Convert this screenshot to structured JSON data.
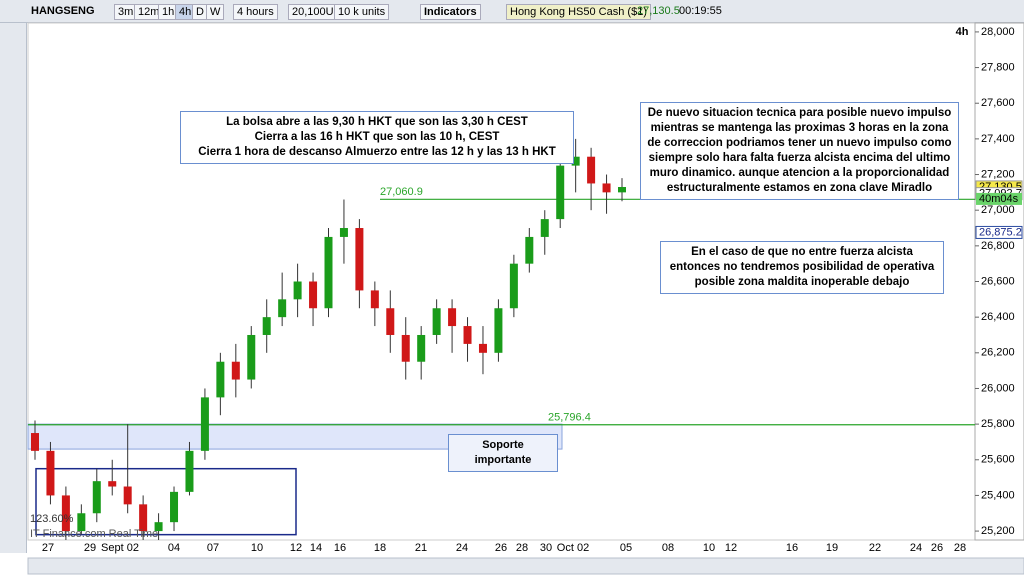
{
  "toolbar": {
    "symbol": "HANGSENG",
    "buttons": [
      "3m",
      "12m",
      "1h",
      "4h",
      "D",
      "W"
    ],
    "period": "4 hours",
    "size": "20,100U",
    "units": "10 k units",
    "indicators": "Indicators",
    "instrument": "Hong Kong HS50 Cash ($1)",
    "price": "27,130.5",
    "time": "00:19:55"
  },
  "chart_data": {
    "type": "candlestick",
    "timeframe": "4h",
    "open": [
      25750,
      25650,
      25400,
      25200,
      25300,
      25480,
      25450,
      25350,
      25200,
      25250,
      25420,
      25650,
      25950,
      26150,
      26050,
      26300,
      26400,
      26500,
      26600,
      26450,
      26850,
      26900,
      26550,
      26450,
      26300,
      26150,
      26300,
      26450,
      26350,
      26250,
      26200,
      26450,
      26700,
      26850,
      26950,
      27250,
      27300,
      27150,
      27100
    ],
    "high": [
      25820,
      25700,
      25450,
      25350,
      25550,
      25600,
      25800,
      25400,
      25300,
      25450,
      25700,
      26000,
      26200,
      26250,
      26350,
      26500,
      26650,
      26700,
      26650,
      26900,
      27060,
      26950,
      26600,
      26550,
      26400,
      26350,
      26500,
      26500,
      26400,
      26350,
      26500,
      26750,
      26900,
      27000,
      27350,
      27400,
      27350,
      27200,
      27180
    ],
    "low": [
      25600,
      25350,
      25150,
      25180,
      25250,
      25400,
      25300,
      25150,
      25150,
      25200,
      25400,
      25600,
      25850,
      25950,
      26000,
      26200,
      26350,
      26400,
      26350,
      26400,
      26700,
      26450,
      26350,
      26200,
      26050,
      26050,
      26250,
      26200,
      26150,
      26080,
      26150,
      26400,
      26650,
      26750,
      26900,
      27100,
      27000,
      26980,
      27050
    ],
    "close": [
      25650,
      25400,
      25200,
      25300,
      25480,
      25450,
      25350,
      25200,
      25250,
      25420,
      25650,
      25950,
      26150,
      26050,
      26300,
      26400,
      26500,
      26600,
      26450,
      26850,
      26900,
      26550,
      26450,
      26300,
      26150,
      26300,
      26450,
      26350,
      26250,
      26200,
      26450,
      26700,
      26850,
      26950,
      27250,
      27300,
      27150,
      27100,
      27130
    ],
    "up_color": "#1a9c1a",
    "down_color": "#d01818",
    "ylim": [
      25150,
      28050
    ],
    "yticks": [
      {
        "value": 25200,
        "label": "25,200"
      },
      {
        "value": 25400,
        "label": "25,400"
      },
      {
        "value": 25600,
        "label": "25,600"
      },
      {
        "value": 25800,
        "label": "25,800"
      },
      {
        "value": 26000,
        "label": "26,000"
      },
      {
        "value": 26200,
        "label": "26,200"
      },
      {
        "value": 26400,
        "label": "26,400"
      },
      {
        "value": 26600,
        "label": "26,600"
      },
      {
        "value": 26800,
        "label": "26,800"
      },
      {
        "value": 27000,
        "label": "27,000"
      },
      {
        "value": 27200,
        "label": "27,200"
      },
      {
        "value": 27400,
        "label": "27,400"
      },
      {
        "value": 27600,
        "label": "27,600"
      },
      {
        "value": 27800,
        "label": "27,800"
      },
      {
        "value": 28000,
        "label": "28,000"
      }
    ],
    "x_labels": [
      "27",
      "29",
      "Sept 02",
      "04",
      "07",
      "10",
      "12",
      "14",
      "16",
      "18",
      "21",
      "24",
      "26",
      "28",
      "30",
      "Oct 02",
      "05",
      "08",
      "10",
      "12",
      "16",
      "19",
      "22",
      "24",
      "26",
      "28"
    ],
    "price_lines": [
      {
        "value": 27060.9,
        "label": "27,060.9"
      },
      {
        "value": 25796.4,
        "label": "25,796.4"
      }
    ],
    "price_tags": [
      {
        "value": 27130.5,
        "label": "27,130.5"
      },
      {
        "value": 27092.7,
        "label": "27,092.7"
      },
      {
        "value": 26875.2,
        "label": "26,875.2"
      }
    ],
    "countdown": "40m04s",
    "fib_label": "123.60%",
    "footer": "IT Finance.com Real Time",
    "annotations": [
      "La bolsa abre a las 9,30 h HKT que son las 3,30 h CEST\nCierra a las 16 h HKT que son las 10 h, CEST\nCierra 1 hora de descanso Almuerzo entre las 12 h y las 13 h HKT",
      "De nuevo situacion tecnica para posible nuevo impulso mientras se mantenga las proximas 3 horas en la zona de correccion podriamos tener un nuevo impulso como siempre solo hara falta fuerza alcista encima del ultimo muro dinamico. aunque atencion a la proporcionalidad estructuralmente estamos en zona clave Miradlo",
      "En el caso de que no entre fuerza alcista entonces no tendremos posibilidad de operativa posible zona maldita inoperable debajo",
      "Soporte importante"
    ]
  }
}
